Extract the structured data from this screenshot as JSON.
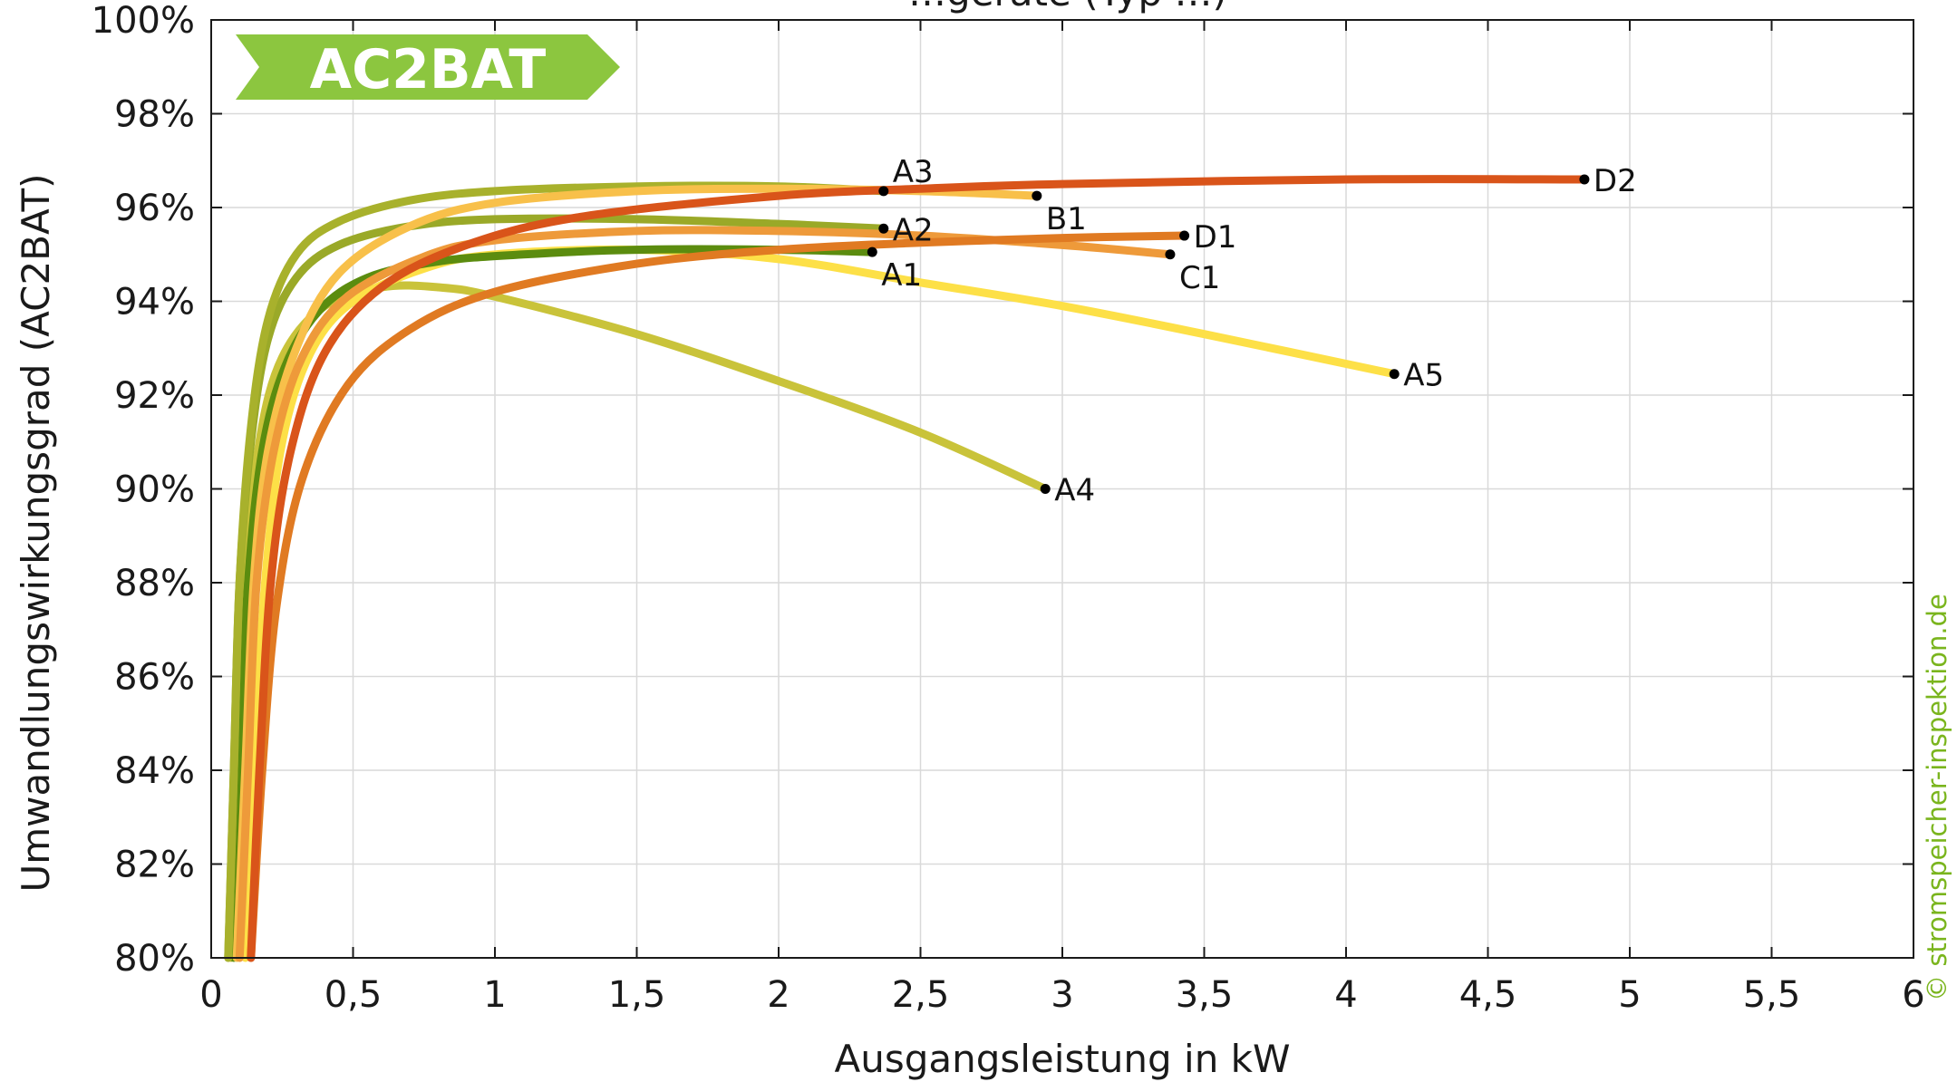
{
  "chart_data": {
    "type": "line",
    "title": "…geräte (Typ …)",
    "xlabel": "Ausgangsleistung in kW",
    "ylabel": "Umwandlungswirkungsgrad (AC2BAT)",
    "xlim": [
      0,
      6
    ],
    "ylim": [
      80,
      100
    ],
    "x_ticks": [
      0,
      0.5,
      1,
      1.5,
      2,
      2.5,
      3,
      3.5,
      4,
      4.5,
      5,
      5.5,
      6
    ],
    "x_tick_labels": [
      "0",
      "0,5",
      "1",
      "1,5",
      "2",
      "2,5",
      "3",
      "3,5",
      "4",
      "4,5",
      "5",
      "5,5",
      "6"
    ],
    "y_ticks": [
      80,
      82,
      84,
      86,
      88,
      90,
      92,
      94,
      96,
      98,
      100
    ],
    "y_tick_labels": [
      "80%",
      "82%",
      "84%",
      "86%",
      "88%",
      "90%",
      "92%",
      "94%",
      "96%",
      "98%",
      "100%"
    ],
    "grid": true,
    "badge": "AC2BAT",
    "badge_color": "#8cc63f",
    "copyright": "© stromspeicher-inspektion.de",
    "copyright_color": "#7ab51d",
    "series": [
      {
        "name": "A4",
        "color": "#c9c33a",
        "end": [
          2.94,
          90.0
        ],
        "points": [
          [
            0.07,
            80
          ],
          [
            0.09,
            84
          ],
          [
            0.12,
            88
          ],
          [
            0.17,
            91
          ],
          [
            0.25,
            92.8
          ],
          [
            0.4,
            93.9
          ],
          [
            0.6,
            94.3
          ],
          [
            0.8,
            94.3
          ],
          [
            1.0,
            94.1
          ],
          [
            1.5,
            93.3
          ],
          [
            2.0,
            92.3
          ],
          [
            2.5,
            91.2
          ],
          [
            2.94,
            90.0
          ]
        ]
      },
      {
        "name": "A5",
        "color": "#fde047",
        "end": [
          4.17,
          92.45
        ],
        "points": [
          [
            0.12,
            80
          ],
          [
            0.15,
            84
          ],
          [
            0.19,
            88
          ],
          [
            0.25,
            91
          ],
          [
            0.35,
            92.9
          ],
          [
            0.5,
            94.0
          ],
          [
            0.75,
            94.7
          ],
          [
            1.0,
            95.0
          ],
          [
            1.5,
            95.1
          ],
          [
            2.0,
            94.9
          ],
          [
            2.5,
            94.4
          ],
          [
            3.0,
            93.9
          ],
          [
            3.5,
            93.3
          ],
          [
            4.17,
            92.45
          ]
        ]
      },
      {
        "name": "A1",
        "color": "#5b8c0f",
        "end": [
          2.33,
          95.05
        ],
        "points": [
          [
            0.08,
            80
          ],
          [
            0.1,
            84
          ],
          [
            0.13,
            88
          ],
          [
            0.18,
            90.8
          ],
          [
            0.26,
            92.6
          ],
          [
            0.38,
            93.8
          ],
          [
            0.55,
            94.5
          ],
          [
            0.8,
            94.85
          ],
          [
            1.1,
            95.0
          ],
          [
            1.5,
            95.1
          ],
          [
            2.0,
            95.1
          ],
          [
            2.33,
            95.05
          ]
        ]
      },
      {
        "name": "A2",
        "color": "#9aa928",
        "end": [
          2.37,
          95.55
        ],
        "points": [
          [
            0.06,
            80
          ],
          [
            0.08,
            84
          ],
          [
            0.1,
            88
          ],
          [
            0.14,
            91
          ],
          [
            0.2,
            93.2
          ],
          [
            0.3,
            94.5
          ],
          [
            0.45,
            95.2
          ],
          [
            0.7,
            95.6
          ],
          [
            1.0,
            95.75
          ],
          [
            1.5,
            95.75
          ],
          [
            2.0,
            95.65
          ],
          [
            2.37,
            95.55
          ]
        ]
      },
      {
        "name": "A3",
        "color": "#a8b12c",
        "end": [
          2.37,
          96.35
        ],
        "points": [
          [
            0.06,
            80
          ],
          [
            0.08,
            84
          ],
          [
            0.1,
            88
          ],
          [
            0.14,
            91.3
          ],
          [
            0.2,
            93.6
          ],
          [
            0.3,
            95.0
          ],
          [
            0.45,
            95.7
          ],
          [
            0.7,
            96.15
          ],
          [
            1.0,
            96.35
          ],
          [
            1.5,
            96.45
          ],
          [
            2.0,
            96.45
          ],
          [
            2.37,
            96.35
          ]
        ]
      },
      {
        "name": "B1",
        "color": "#f8c04a",
        "end": [
          2.91,
          96.25
        ],
        "points": [
          [
            0.09,
            80
          ],
          [
            0.12,
            84
          ],
          [
            0.15,
            88
          ],
          [
            0.2,
            90.8
          ],
          [
            0.3,
            93.0
          ],
          [
            0.45,
            94.6
          ],
          [
            0.7,
            95.6
          ],
          [
            1.0,
            96.1
          ],
          [
            1.5,
            96.35
          ],
          [
            2.0,
            96.4
          ],
          [
            2.5,
            96.35
          ],
          [
            2.91,
            96.25
          ]
        ]
      },
      {
        "name": "C1",
        "color": "#ee9a3a",
        "end": [
          3.38,
          95.0
        ],
        "points": [
          [
            0.1,
            80
          ],
          [
            0.13,
            84
          ],
          [
            0.16,
            88
          ],
          [
            0.22,
            90.8
          ],
          [
            0.32,
            92.8
          ],
          [
            0.48,
            94.1
          ],
          [
            0.75,
            94.95
          ],
          [
            1.0,
            95.3
          ],
          [
            1.5,
            95.5
          ],
          [
            2.0,
            95.5
          ],
          [
            2.5,
            95.4
          ],
          [
            3.0,
            95.2
          ],
          [
            3.38,
            95.0
          ]
        ]
      },
      {
        "name": "D1",
        "color": "#e07a22",
        "end": [
          3.43,
          95.4
        ],
        "points": [
          [
            0.14,
            80
          ],
          [
            0.18,
            84
          ],
          [
            0.23,
            87.5
          ],
          [
            0.32,
            90.2
          ],
          [
            0.48,
            92.2
          ],
          [
            0.7,
            93.4
          ],
          [
            1.0,
            94.2
          ],
          [
            1.5,
            94.8
          ],
          [
            2.0,
            95.1
          ],
          [
            2.5,
            95.25
          ],
          [
            3.0,
            95.35
          ],
          [
            3.43,
            95.4
          ]
        ]
      },
      {
        "name": "D2",
        "color": "#d9541a",
        "end": [
          4.84,
          96.6
        ],
        "points": [
          [
            0.14,
            80
          ],
          [
            0.17,
            84
          ],
          [
            0.21,
            88
          ],
          [
            0.28,
            90.8
          ],
          [
            0.4,
            92.9
          ],
          [
            0.6,
            94.3
          ],
          [
            0.9,
            95.2
          ],
          [
            1.3,
            95.8
          ],
          [
            2.0,
            96.25
          ],
          [
            2.5,
            96.4
          ],
          [
            3.0,
            96.5
          ],
          [
            4.0,
            96.6
          ],
          [
            4.84,
            96.6
          ]
        ]
      }
    ],
    "annotations": [
      {
        "text": "A3",
        "x": 2.37,
        "y": 96.35,
        "pos": "above-right"
      },
      {
        "text": "A2",
        "x": 2.37,
        "y": 95.55,
        "pos": "right"
      },
      {
        "text": "A1",
        "x": 2.33,
        "y": 95.05,
        "pos": "below-right"
      },
      {
        "text": "B1",
        "x": 2.91,
        "y": 96.25,
        "pos": "below-right"
      },
      {
        "text": "D1",
        "x": 3.43,
        "y": 95.4,
        "pos": "right"
      },
      {
        "text": "C1",
        "x": 3.38,
        "y": 95.0,
        "pos": "below-right"
      },
      {
        "text": "D2",
        "x": 4.84,
        "y": 96.6,
        "pos": "right"
      },
      {
        "text": "A5",
        "x": 4.17,
        "y": 92.45,
        "pos": "right"
      },
      {
        "text": "A4",
        "x": 2.94,
        "y": 90.0,
        "pos": "right"
      }
    ]
  }
}
